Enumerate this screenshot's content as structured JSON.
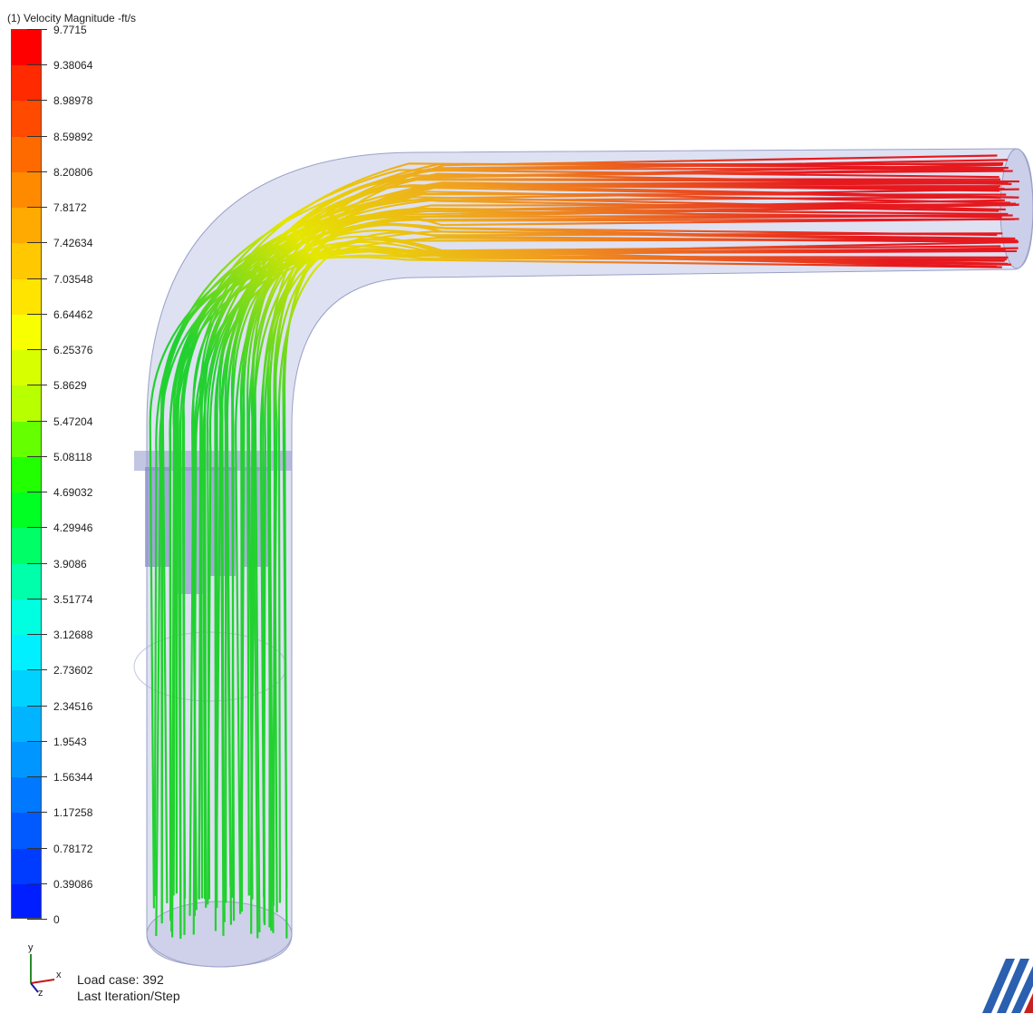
{
  "legend": {
    "title": "(1) Velocity Magnitude -ft/s",
    "labels": [
      "9.7715",
      "9.38064",
      "8.98978",
      "8.59892",
      "8.20806",
      "7.8172",
      "7.42634",
      "7.03548",
      "6.64462",
      "6.25376",
      "5.8629",
      "5.47204",
      "5.08118",
      "4.69032",
      "4.29946",
      "3.9086",
      "3.51774",
      "3.12688",
      "2.73602",
      "2.34516",
      "1.9543",
      "1.56344",
      "1.17258",
      "0.78172",
      "0.39086",
      "0"
    ],
    "band_colors": [
      "#ff0000",
      "#ff2a00",
      "#ff4a00",
      "#ff6a00",
      "#ff8a00",
      "#ffaa00",
      "#ffc800",
      "#ffe400",
      "#f8ff00",
      "#d8ff00",
      "#b8ff00",
      "#66ff00",
      "#22ff00",
      "#00ff22",
      "#00ff66",
      "#00ffaa",
      "#00ffe0",
      "#00f0ff",
      "#00d2ff",
      "#00b4ff",
      "#0096ff",
      "#0078ff",
      "#005aff",
      "#003cff",
      "#001eff"
    ]
  },
  "axes_triad": {
    "x": "x",
    "y": "y",
    "z": "z"
  },
  "status": {
    "load_case": "Load case: 392",
    "iteration": "Last Iteration/Step"
  },
  "streamline_colors": {
    "inlet": "#22d130",
    "bend": "#e6e600",
    "outlet": "#e6191e",
    "pipe": "#c3c8e8",
    "vanes": "#7e86c6"
  }
}
